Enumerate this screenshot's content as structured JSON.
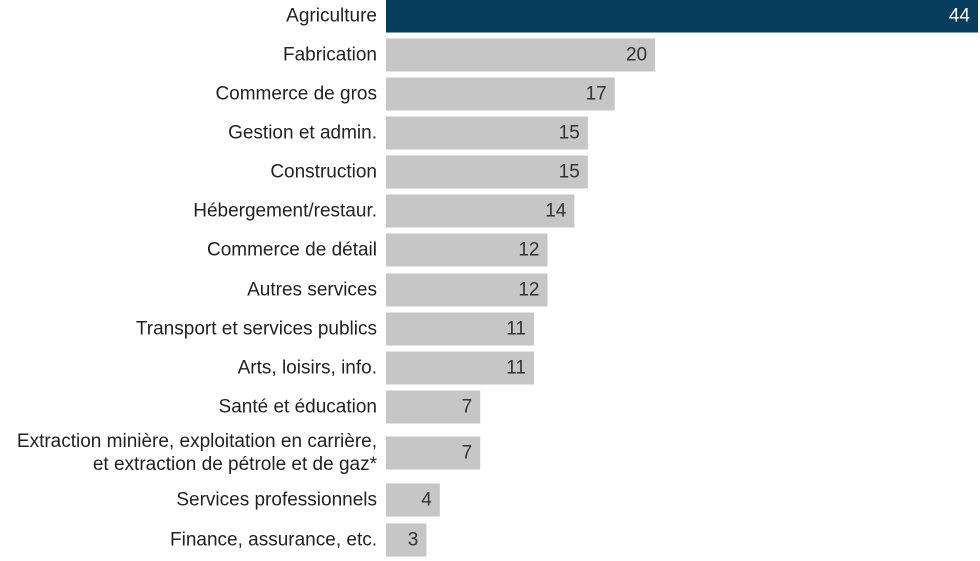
{
  "chart_data": {
    "type": "bar",
    "orientation": "horizontal",
    "categories": [
      [
        "Agriculture"
      ],
      [
        "Fabrication"
      ],
      [
        "Commerce de gros"
      ],
      [
        "Gestion et admin."
      ],
      [
        "Construction"
      ],
      [
        "Hébergement/restaur."
      ],
      [
        "Commerce de détail"
      ],
      [
        "Autres services"
      ],
      [
        "Transport et services publics"
      ],
      [
        "Arts, loisirs, info."
      ],
      [
        "Santé et éducation"
      ],
      [
        "Extraction minière, exploitation en carrière,",
        "et extraction de pétrole et de gaz*"
      ],
      [
        "Services professionnels"
      ],
      [
        "Finance, assurance, etc."
      ]
    ],
    "values": [
      44,
      20,
      17,
      15,
      15,
      14,
      12,
      12,
      11,
      11,
      7,
      7,
      4,
      3
    ],
    "xlim": [
      0,
      44
    ],
    "grid": false,
    "colors": {
      "highlight": "#063d5c",
      "default": "#c6c6c6",
      "highlight_text": "#ffffff",
      "default_text": "#333333"
    }
  }
}
